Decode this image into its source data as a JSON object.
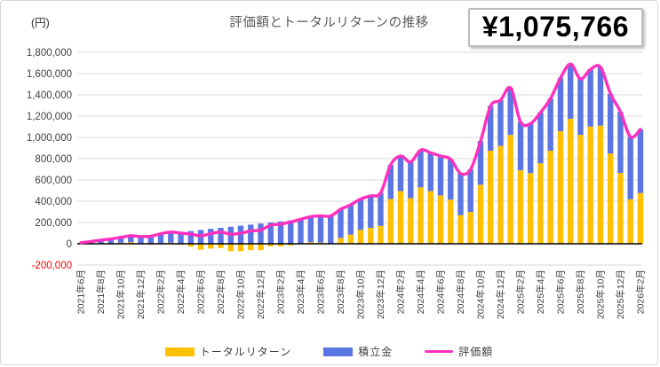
{
  "frame": {
    "title": "評価額とトータルリターンの推移",
    "unit_label": "(円)",
    "headline_value": "¥1,075,766"
  },
  "legend": {
    "items": [
      {
        "label": "トータルリターン",
        "color": "#FFC000",
        "swatch": "bar"
      },
      {
        "label": "積立金",
        "color": "#5B76E3",
        "swatch": "bar"
      },
      {
        "label": "評価額",
        "color": "#FF2FBE",
        "swatch": "line"
      }
    ]
  },
  "chart_data": {
    "type": "bar",
    "subtype": "stacked-bars-with-line",
    "title": "評価額とトータルリターンの推移",
    "xlabel": "",
    "ylabel": "(円)",
    "ylim": [
      -200000,
      1800000
    ],
    "y_tick_step": 200000,
    "grid": true,
    "legend_position": "bottom",
    "x_tick_step": 2,
    "negative_tick_color": "#FF0000",
    "axis_text_color": "#404040",
    "grid_color": "#D9D9D9",
    "categories": [
      "2021年6月",
      "2021年7月",
      "2021年8月",
      "2021年9月",
      "2021年10月",
      "2021年11月",
      "2021年12月",
      "2022年1月",
      "2022年2月",
      "2022年3月",
      "2022年4月",
      "2022年5月",
      "2022年6月",
      "2022年7月",
      "2022年8月",
      "2022年9月",
      "2022年10月",
      "2022年11月",
      "2022年12月",
      "2023年1月",
      "2023年2月",
      "2023年3月",
      "2023年4月",
      "2023年5月",
      "2023年6月",
      "2023年7月",
      "2023年8月",
      "2023年9月",
      "2023年10月",
      "2023年11月",
      "2023年12月",
      "2024年1月",
      "2024年2月",
      "2024年3月",
      "2024年4月",
      "2024年5月",
      "2024年6月",
      "2024年7月",
      "2024年8月",
      "2024年9月",
      "2024年10月",
      "2024年11月",
      "2024年12月",
      "2025年1月",
      "2025年2月",
      "2025年3月",
      "2025年4月",
      "2025年5月",
      "2025年6月",
      "2025年7月",
      "2025年8月",
      "2025年9月",
      "2025年10月",
      "2025年11月",
      "2025年12月",
      "2026年1月",
      "2026年2月"
    ],
    "series": [
      {
        "name": "トータルリターン",
        "type": "bar",
        "color": "#FFC000",
        "values": [
          0,
          2000,
          4000,
          5000,
          10000,
          15000,
          -2000,
          -8000,
          5000,
          10000,
          -10000,
          -28000,
          -55000,
          -45000,
          -40000,
          -70000,
          -70000,
          -60000,
          -60000,
          -25000,
          -25000,
          -15000,
          0,
          15000,
          12000,
          2000,
          55000,
          87000,
          132000,
          150000,
          168000,
          422000,
          495000,
          429000,
          531000,
          495000,
          455000,
          415000,
          270000,
          300000,
          555000,
          875000,
          920000,
          1023000,
          691000,
          664000,
          757000,
          875000,
          1058000,
          1176000,
          1024000,
          1102000,
          1110000,
          848000,
          666000,
          419000,
          477766
        ]
      },
      {
        "name": "積立金",
        "type": "bar",
        "color": "#5B76E3",
        "values": [
          10000,
          20000,
          30000,
          40000,
          50000,
          60000,
          70000,
          80000,
          90000,
          100000,
          110000,
          120000,
          130000,
          140000,
          150000,
          160000,
          170000,
          180000,
          190000,
          200000,
          210000,
          220000,
          230000,
          240000,
          250000,
          260000,
          270000,
          280000,
          290000,
          300000,
          310000,
          320000,
          330000,
          340000,
          350000,
          360000,
          370000,
          380000,
          390000,
          400000,
          410000,
          420000,
          430000,
          442000,
          454000,
          466000,
          478000,
          490000,
          502000,
          514000,
          526000,
          538000,
          550000,
          562000,
          574000,
          586000,
          598000
        ]
      },
      {
        "name": "評価額",
        "type": "line",
        "color": "#FF2FBE",
        "values": [
          10000,
          22000,
          34000,
          45000,
          60000,
          75000,
          68000,
          72000,
          95000,
          110000,
          100000,
          92000,
          75000,
          95000,
          110000,
          90000,
          100000,
          120000,
          130000,
          175000,
          185000,
          205000,
          230000,
          255000,
          262000,
          262000,
          325000,
          367000,
          422000,
          450000,
          478000,
          742000,
          825000,
          769000,
          881000,
          855000,
          825000,
          795000,
          660000,
          700000,
          965000,
          1295000,
          1350000,
          1465000,
          1145000,
          1130000,
          1235000,
          1365000,
          1560000,
          1690000,
          1550000,
          1640000,
          1660000,
          1410000,
          1240000,
          1005000,
          1075766
        ]
      }
    ]
  }
}
